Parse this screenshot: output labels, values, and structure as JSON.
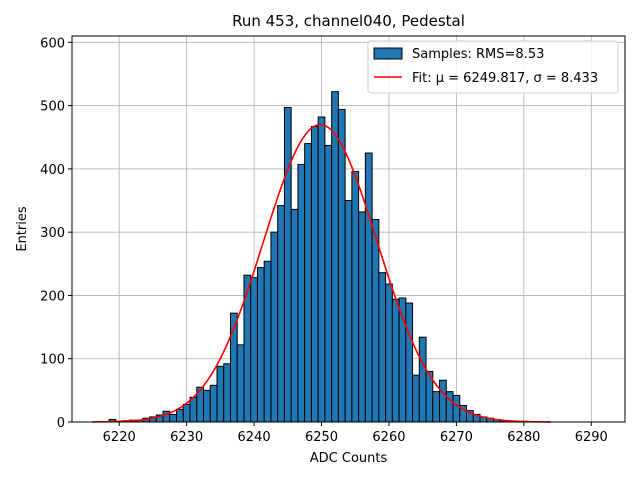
{
  "chart_data": {
    "type": "bar",
    "title": "Run 453, channel040, Pedestal",
    "xlabel": "ADC Counts",
    "ylabel": "Entries",
    "xlim": [
      6213,
      6295
    ],
    "ylim": [
      0,
      610
    ],
    "xticks": [
      6220,
      6230,
      6240,
      6250,
      6260,
      6270,
      6280,
      6290
    ],
    "yticks": [
      0,
      100,
      200,
      300,
      400,
      500,
      600
    ],
    "grid": true,
    "legend_position": "top-right",
    "bin_width": 1,
    "bins": [
      6218,
      6219,
      6220,
      6221,
      6222,
      6223,
      6224,
      6225,
      6226,
      6227,
      6228,
      6229,
      6230,
      6231,
      6232,
      6233,
      6234,
      6235,
      6236,
      6237,
      6238,
      6239,
      6240,
      6241,
      6242,
      6243,
      6244,
      6245,
      6246,
      6247,
      6248,
      6249,
      6250,
      6251,
      6252,
      6253,
      6254,
      6255,
      6256,
      6257,
      6258,
      6259,
      6260,
      6261,
      6262,
      6263,
      6264,
      6265,
      6266,
      6267,
      6268,
      6269,
      6270,
      6271,
      6272,
      6273,
      6274,
      6275,
      6276,
      6277,
      6278,
      6279,
      6280
    ],
    "counts": [
      0,
      4,
      1,
      2,
      3,
      3,
      6,
      8,
      11,
      17,
      12,
      20,
      28,
      39,
      55,
      50,
      58,
      88,
      92,
      172,
      122,
      232,
      228,
      244,
      254,
      300,
      342,
      497,
      336,
      407,
      440,
      467,
      482,
      437,
      522,
      494,
      350,
      396,
      332,
      425,
      320,
      236,
      218,
      194,
      196,
      188,
      74,
      134,
      80,
      48,
      66,
      48,
      42,
      26,
      18,
      12,
      8,
      6,
      4,
      2,
      1,
      1,
      1
    ],
    "samples_legend": "Samples: RMS=8.53",
    "fit": {
      "legend": "Fit: μ = 6249.817, σ = 8.433",
      "mu": 6249.817,
      "sigma": 8.433,
      "peak": 470,
      "x_range": [
        6216,
        6284
      ],
      "color": "#ff0000"
    },
    "bar_color": "#1f77b4",
    "edge_color": "#000000"
  }
}
